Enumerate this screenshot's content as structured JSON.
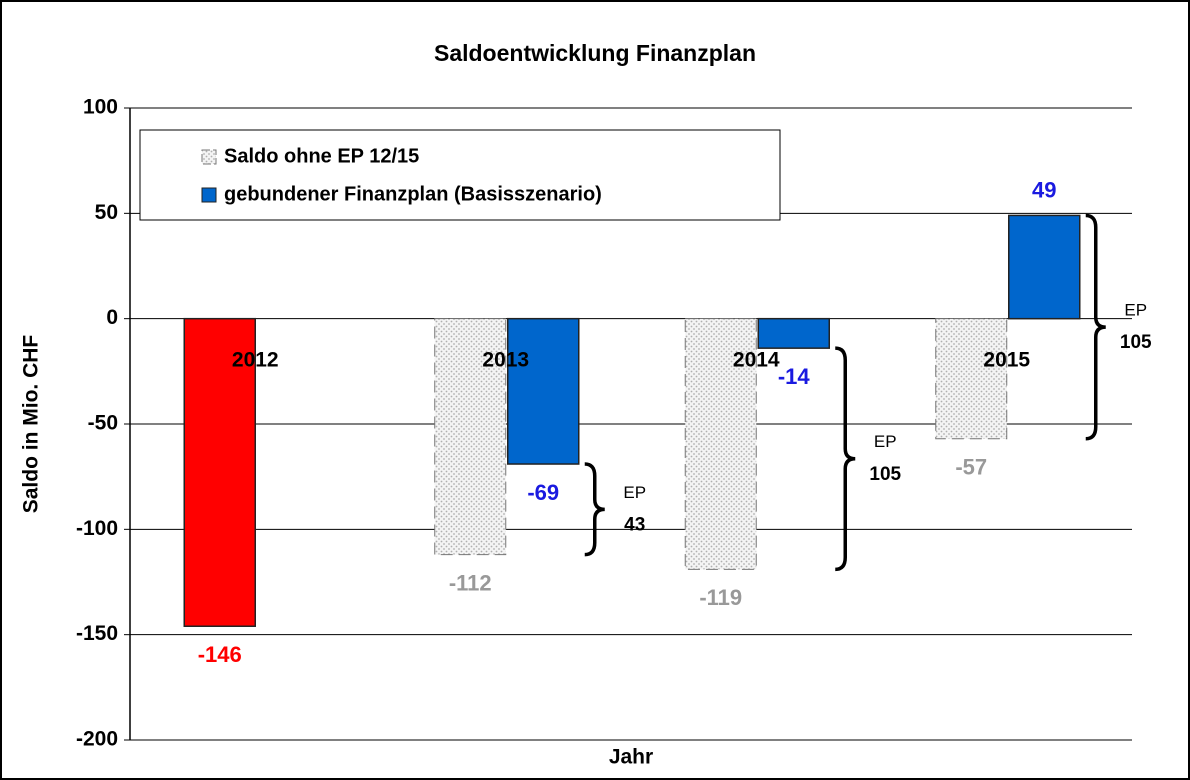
{
  "chart_data": {
    "type": "bar",
    "title": "Saldoentwicklung  Finanzplan",
    "y_label": "Saldo in Mio. CHF",
    "x_label": "Jahr",
    "categories": [
      "2012",
      "2013",
      "2014",
      "2015"
    ],
    "series": [
      {
        "name": "Saldo ohne EP 12/15",
        "color": "#c8c8c8",
        "pattern": "dots",
        "point_colors": [
          "#ff0000",
          "#c8c8c8",
          "#c8c8c8",
          "#c8c8c8"
        ],
        "label_colors": [
          "#ff0000",
          "#999999",
          "#999999",
          "#999999"
        ],
        "values": [
          -146,
          -112,
          -119,
          -57
        ]
      },
      {
        "name": "gebundener Finanzplan (Basisszenario)",
        "color": "#0066cc",
        "label_colors": [
          "#1a1ae0",
          "#1a1ae0",
          "#1a1ae0",
          "#1a1ae0"
        ],
        "values": [
          null,
          -69,
          -14,
          49
        ]
      }
    ],
    "annotations": [
      {
        "text": "EP",
        "value": 43,
        "category": 1
      },
      {
        "text": "EP",
        "value": 105,
        "category": 2
      },
      {
        "text": "EP",
        "value": 105,
        "category": 3
      }
    ],
    "ylim": [
      -200,
      100
    ],
    "yticks": [
      -200,
      -150,
      -100,
      -50,
      0,
      50,
      100
    ],
    "grid": true,
    "legend": "top-left"
  }
}
